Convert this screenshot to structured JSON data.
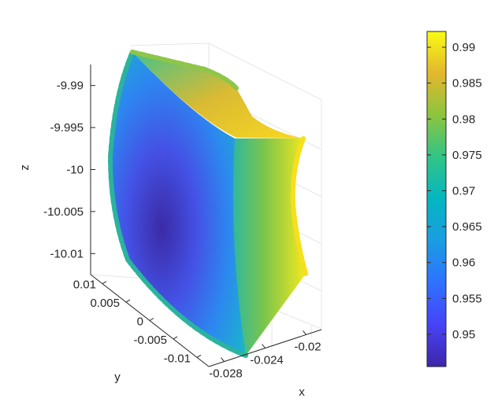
{
  "chart_data": {
    "type": "scatter3d",
    "title": "",
    "xlabel": "x",
    "ylabel": "y",
    "zlabel": "z",
    "x_ticks": [
      "-0.028",
      "-0.024",
      "-0.02"
    ],
    "y_ticks": [
      "0.01",
      "0.005",
      "0",
      "-0.005",
      "-0.01"
    ],
    "z_ticks": [
      "-9.99",
      "-9.995",
      "-10",
      "-10.005",
      "-10.01"
    ],
    "xlim": [
      -0.0295,
      -0.0185
    ],
    "ylim": [
      -0.0125,
      0.0125
    ],
    "zlim": [
      -10.0125,
      -9.9875
    ],
    "colormap": "parula",
    "colorbar": {
      "range": [
        0.9455,
        0.9922
      ],
      "ticks": [
        "0.99",
        "0.985",
        "0.98",
        "0.975",
        "0.97",
        "0.965",
        "0.96",
        "0.955",
        "0.95"
      ]
    },
    "points": [
      {
        "x": -0.029,
        "y": 0.01,
        "z": -9.9895,
        "c": 0.972
      },
      {
        "x": -0.029,
        "y": -0.01,
        "z": -10.011,
        "c": 0.966
      },
      {
        "x": -0.024,
        "y": 0.0,
        "z": -10.003,
        "c": 0.946
      },
      {
        "x": -0.02,
        "y": 0.005,
        "z": -9.996,
        "c": 0.99
      },
      {
        "x": -0.02,
        "y": -0.005,
        "z": -10.006,
        "c": 0.989
      },
      {
        "x": -0.027,
        "y": -0.009,
        "z": -10.012,
        "c": 0.974
      }
    ]
  }
}
